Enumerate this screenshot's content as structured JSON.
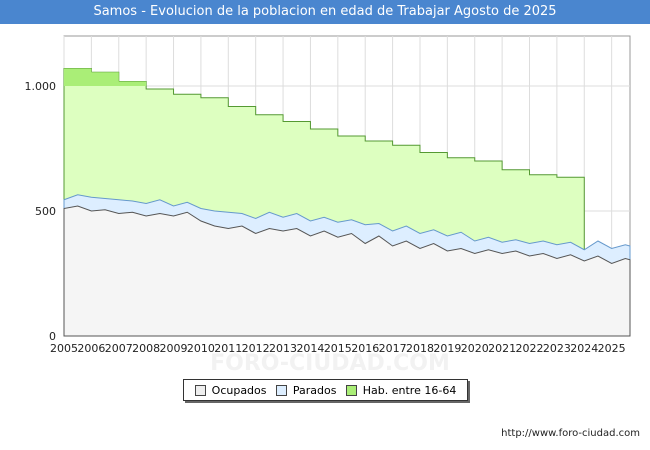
{
  "title": "Samos - Evolucion de la poblacion en edad de Trabajar Agosto de 2025",
  "source": "http://www.foro-ciudad.com",
  "watermark": "FORO-CIUDAD.COM",
  "legend": [
    {
      "label": "Ocupados",
      "color": "#eeeeee"
    },
    {
      "label": "Parados",
      "color": "#ddeeff"
    },
    {
      "label": "Hab. entre 16-64",
      "color": "#aaee77"
    }
  ],
  "chart_data": {
    "type": "area",
    "ylim": [
      0,
      1200
    ],
    "yticks": [
      0,
      500,
      1000
    ],
    "ytick_labels": [
      "0",
      "500",
      "1.000"
    ],
    "xlim": [
      2005,
      2025.67
    ],
    "xtick_labels": [
      "2005",
      "2006",
      "2007",
      "2008",
      "2009",
      "2010",
      "2011",
      "2012",
      "2013",
      "2014",
      "2015",
      "2016",
      "2017",
      "2018",
      "2019",
      "2020",
      "2021",
      "2022",
      "2023",
      "2024",
      "2025"
    ],
    "grid": true,
    "series": [
      {
        "name": "Hab. entre 16-64",
        "color": "#ddffc0",
        "x": [
          2005,
          2006,
          2007,
          2008,
          2009,
          2010,
          2011,
          2012,
          2013,
          2014,
          2015,
          2016,
          2017,
          2018,
          2019,
          2020,
          2021,
          2022,
          2023,
          2024
        ],
        "values": [
          1070,
          1055,
          1018,
          988,
          967,
          953,
          918,
          885,
          858,
          828,
          800,
          780,
          763,
          734,
          713,
          700,
          665,
          645,
          635,
          0
        ]
      },
      {
        "name": "Parados",
        "color": "#ddeeff",
        "x": [
          2005,
          2005.5,
          2006,
          2006.5,
          2007,
          2007.5,
          2008,
          2008.5,
          2009,
          2009.5,
          2010,
          2010.5,
          2011,
          2011.5,
          2012,
          2012.5,
          2013,
          2013.5,
          2014,
          2014.5,
          2015,
          2015.5,
          2016,
          2016.5,
          2017,
          2017.5,
          2018,
          2018.5,
          2019,
          2019.5,
          2020,
          2020.5,
          2021,
          2021.5,
          2022,
          2022.5,
          2023,
          2023.5,
          2024,
          2024.5,
          2025,
          2025.5,
          2025.67
        ],
        "values": [
          545,
          565,
          555,
          550,
          545,
          540,
          530,
          545,
          520,
          535,
          510,
          500,
          495,
          490,
          470,
          495,
          475,
          490,
          460,
          475,
          455,
          465,
          445,
          450,
          420,
          440,
          410,
          425,
          400,
          415,
          380,
          395,
          375,
          385,
          370,
          380,
          365,
          375,
          345,
          380,
          350,
          365,
          360
        ]
      },
      {
        "name": "Ocupados",
        "color": "#f5f5f5",
        "x": [
          2005,
          2005.5,
          2006,
          2006.5,
          2007,
          2007.5,
          2008,
          2008.5,
          2009,
          2009.5,
          2010,
          2010.5,
          2011,
          2011.5,
          2012,
          2012.5,
          2013,
          2013.5,
          2014,
          2014.5,
          2015,
          2015.5,
          2016,
          2016.5,
          2017,
          2017.5,
          2018,
          2018.5,
          2019,
          2019.5,
          2020,
          2020.5,
          2021,
          2021.5,
          2022,
          2022.5,
          2023,
          2023.5,
          2024,
          2024.5,
          2025,
          2025.5,
          2025.67
        ],
        "values": [
          510,
          520,
          500,
          505,
          490,
          495,
          480,
          490,
          480,
          495,
          460,
          440,
          430,
          440,
          410,
          430,
          420,
          430,
          400,
          420,
          395,
          410,
          370,
          400,
          360,
          380,
          350,
          370,
          340,
          350,
          330,
          345,
          330,
          340,
          320,
          330,
          310,
          325,
          300,
          320,
          290,
          310,
          305
        ]
      }
    ]
  }
}
